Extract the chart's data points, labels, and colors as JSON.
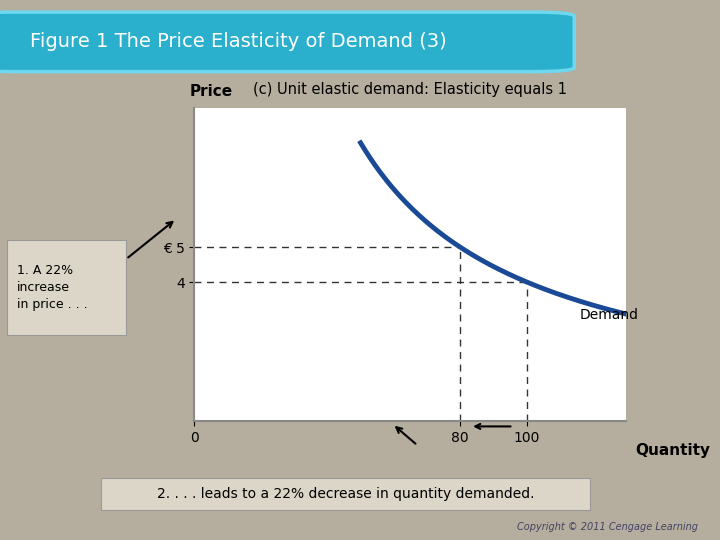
{
  "title": "Figure 1 The Price Elasticity of Demand (3)",
  "subtitle": "(c) Unit elastic demand: Elasticity equals 1",
  "title_bg_color": "#2ab0cc",
  "title_text_color": "#ffffff",
  "bg_color": "#b5ad9d",
  "plot_bg_color": "#ffffff",
  "xlabel": "Quantity",
  "ylabel": "Price",
  "x_ticks": [
    0,
    80,
    100
  ],
  "x_tick_labels": [
    "0",
    "80",
    "100"
  ],
  "y_ticks": [
    4,
    5
  ],
  "y_tick_labels": [
    "4",
    "€ 5"
  ],
  "demand_label": "Demand",
  "annotation1": "1. A 22%\nincrease\nin price . . .",
  "annotation2": "2. . . . leads to a 22% decrease in quantity demanded.",
  "copyright": "Copyright © 2011 Cengage Learning",
  "curve_color": "#1a4a96",
  "curve_linewidth": 3.5,
  "dashed_color": "#333333",
  "arrow_color": "#000000",
  "xlim": [
    0,
    130
  ],
  "ylim": [
    0,
    9
  ],
  "price_5": 5,
  "price_4": 4,
  "qty_80": 80,
  "qty_100": 100,
  "k": 400
}
